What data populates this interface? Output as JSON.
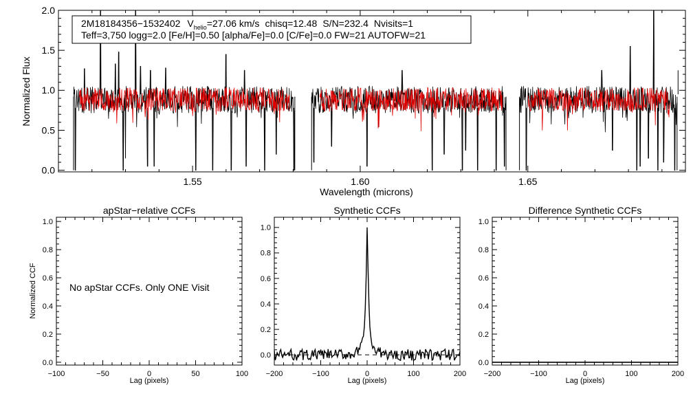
{
  "colors": {
    "observed": "#000000",
    "model": "#e00000",
    "axis": "#000000"
  },
  "spectrum": {
    "star_id": "2M18184356−1532402",
    "vhelio_label": "V",
    "vhelio_sub": "helio",
    "vhelio_value": "=27.06 km/s",
    "chisq": "chisq=12.48",
    "snr": "S/N=232.4",
    "nvisits": "Nvisits=1",
    "params_line": "Teff=3,750 logg=2.0 [Fe/H]=0.50 [alpha/Fe]=0.0 [C/Fe]=0.0 FW=21 AUTOFW=21"
  },
  "ccf_panels": {
    "apstar_title": "apStar−relative CCFs",
    "apstar_message": "No apStar CCFs.  Only ONE Visit",
    "synthetic_title": "Synthetic CCFs",
    "difference_title": "Difference Synthetic CCFs"
  },
  "chart_data": [
    {
      "id": "spectrum",
      "type": "line",
      "title": "",
      "xlabel": "Wavelength (microns)",
      "ylabel": "Normalized Flux",
      "xlim": [
        1.51,
        1.697
      ],
      "ylim": [
        -0.02,
        2.0
      ],
      "xticks": [
        1.55,
        1.6,
        1.65
      ],
      "xtick_labels": [
        "1.55",
        "1.60",
        "1.65"
      ],
      "yticks": [
        0.0,
        0.5,
        1.0,
        1.5,
        2.0
      ],
      "ytick_labels": [
        "0.0",
        "0.5",
        "1.0",
        "1.5",
        "2.0"
      ],
      "chip_ranges": [
        [
          1.5145,
          1.5805
        ],
        [
          1.5855,
          1.6435
        ],
        [
          1.6475,
          1.6945
        ]
      ],
      "model_ranges": [
        [
          1.5162,
          1.579
        ],
        [
          1.588,
          1.6425
        ],
        [
          1.65,
          1.6925
        ]
      ],
      "continuum": 0.9,
      "emission_spikes": [
        [
          1.5178,
          1.27
        ],
        [
          1.5225,
          2.0
        ],
        [
          1.527,
          1.33
        ],
        [
          1.528,
          1.48
        ],
        [
          1.533,
          2.0
        ],
        [
          1.5345,
          1.3
        ],
        [
          1.5375,
          1.25
        ],
        [
          1.542,
          1.28
        ],
        [
          1.56,
          1.45
        ],
        [
          1.5655,
          1.25
        ],
        [
          1.6125,
          1.25
        ],
        [
          1.672,
          1.25
        ],
        [
          1.6805,
          1.55
        ],
        [
          1.6875,
          2.0
        ],
        [
          1.6948,
          1.25
        ]
      ],
      "absorption_lines": [
        [
          1.515,
          0.0
        ],
        [
          1.5293,
          0.0
        ],
        [
          1.53,
          0.15
        ],
        [
          1.5366,
          0.05
        ],
        [
          1.5385,
          0.05
        ],
        [
          1.551,
          0.0
        ],
        [
          1.556,
          0.0
        ],
        [
          1.5615,
          0.0
        ],
        [
          1.566,
          0.05
        ],
        [
          1.5715,
          0.0
        ],
        [
          1.575,
          0.2
        ],
        [
          1.5802,
          0.0
        ],
        [
          1.5862,
          0.1
        ],
        [
          1.5915,
          0.3
        ],
        [
          1.602,
          0.05
        ],
        [
          1.6215,
          0.0
        ],
        [
          1.625,
          0.2
        ],
        [
          1.6305,
          0.0
        ],
        [
          1.6315,
          0.25
        ],
        [
          1.635,
          0.0
        ],
        [
          1.6405,
          0.0
        ],
        [
          1.643,
          0.05
        ],
        [
          1.6495,
          0.0
        ],
        [
          1.6752,
          0.25
        ],
        [
          1.6825,
          0.0
        ],
        [
          1.6835,
          0.05
        ],
        [
          1.686,
          0.15
        ],
        [
          1.6888,
          0.0
        ],
        [
          1.6905,
          0.1
        ],
        [
          1.6938,
          0.0
        ]
      ],
      "series": [
        {
          "name": "observed spectrum",
          "color": "#000000"
        },
        {
          "name": "model spectrum",
          "color": "#e00000"
        }
      ]
    },
    {
      "id": "apstar",
      "type": "line",
      "title": "apStar−relative CCFs",
      "xlabel": "Lag (pixels)",
      "ylabel": "Normalized CCF",
      "xlim": [
        -100,
        100
      ],
      "ylim": [
        -0.02,
        1.03
      ],
      "xticks": [
        -100,
        -50,
        0,
        50,
        100
      ],
      "xtick_labels": [
        "−100",
        "−50",
        "0",
        "50",
        "100"
      ],
      "yticks": [
        0.0,
        0.2,
        0.4,
        0.6,
        0.8,
        1.0
      ],
      "ytick_labels": [
        "0.0",
        "0.2",
        "0.4",
        "0.6",
        "0.8",
        "1.0"
      ],
      "series": []
    },
    {
      "id": "synthetic",
      "type": "line",
      "title": "Synthetic CCFs",
      "xlabel": "Lag (pixels)",
      "ylabel": "",
      "xlim": [
        -200,
        200
      ],
      "ylim": [
        -0.08,
        1.08
      ],
      "xticks": [
        -200,
        -100,
        0,
        100,
        200
      ],
      "xtick_labels": [
        "−200",
        "−100",
        "0",
        "100",
        "200"
      ],
      "yticks": [
        0.0,
        0.2,
        0.4,
        0.6,
        0.8,
        1.0
      ],
      "ytick_labels": [
        "0.0",
        "0.2",
        "0.4",
        "0.6",
        "0.8",
        "1.0"
      ],
      "peak_lag": 0,
      "peak_value": 1.0,
      "baseline": 0.0,
      "series": [
        {
          "name": "synthetic CCF",
          "color": "#000000"
        }
      ]
    },
    {
      "id": "difference",
      "type": "line",
      "title": "Difference Synthetic CCFs",
      "xlabel": "Lag (pixels)",
      "ylabel": "",
      "xlim": [
        -200,
        200
      ],
      "ylim": [
        -0.02,
        1.03
      ],
      "xticks": [
        -200,
        -100,
        0,
        100,
        200
      ],
      "xtick_labels": [
        "−200",
        "−100",
        "0",
        "100",
        "200"
      ],
      "yticks": [
        0.0,
        0.2,
        0.4,
        0.6,
        0.8,
        1.0
      ],
      "ytick_labels": [
        "0.0",
        "0.2",
        "0.4",
        "0.6",
        "0.8",
        "1.0"
      ],
      "series": [
        {
          "name": "difference CCF",
          "color": "#000000",
          "constant": 0.0
        }
      ]
    }
  ]
}
